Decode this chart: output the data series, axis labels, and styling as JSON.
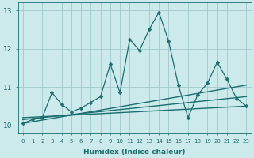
{
  "xlabel": "Humidex (Indice chaleur)",
  "xlim": [
    -0.5,
    23.5
  ],
  "ylim": [
    9.8,
    13.2
  ],
  "yticks": [
    10,
    11,
    12,
    13
  ],
  "xticks": [
    0,
    1,
    2,
    3,
    4,
    5,
    6,
    7,
    8,
    9,
    10,
    11,
    12,
    13,
    14,
    15,
    16,
    17,
    18,
    19,
    20,
    21,
    22,
    23
  ],
  "bg_color": "#cce9ec",
  "grid_color": "#a0c8cc",
  "line_color": "#1a6e6e",
  "lines": [
    {
      "x": [
        0,
        1,
        2,
        3,
        4,
        5,
        6,
        7,
        8,
        9,
        10,
        11,
        12,
        13,
        14,
        15,
        16,
        17,
        18,
        19,
        20,
        21,
        22,
        23
      ],
      "y": [
        10.05,
        10.15,
        10.2,
        10.85,
        10.55,
        10.35,
        10.45,
        10.6,
        10.75,
        11.6,
        10.85,
        12.25,
        11.95,
        12.5,
        12.95,
        12.2,
        11.05,
        10.2,
        10.8,
        11.1,
        11.65,
        11.2,
        10.7,
        10.5
      ],
      "marker": "D",
      "markersize": 2.5,
      "linestyle": "-"
    },
    {
      "x": [
        0,
        23
      ],
      "y": [
        10.05,
        11.05
      ],
      "marker": null,
      "markersize": 0,
      "linestyle": "-",
      "linewidth": 1.0
    },
    {
      "x": [
        0,
        23
      ],
      "y": [
        10.15,
        10.75
      ],
      "marker": null,
      "markersize": 0,
      "linestyle": "-",
      "linewidth": 1.0
    },
    {
      "x": [
        0,
        23
      ],
      "y": [
        10.2,
        10.5
      ],
      "marker": null,
      "markersize": 0,
      "linestyle": "-",
      "linewidth": 1.0
    }
  ]
}
